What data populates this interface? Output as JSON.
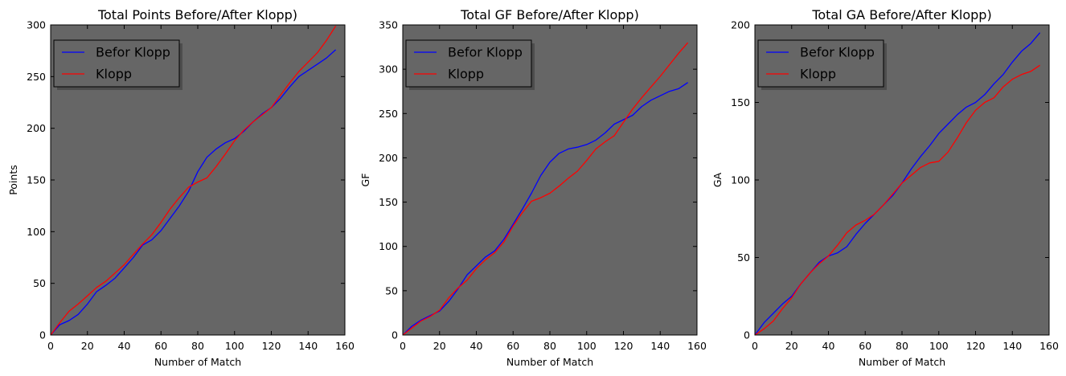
{
  "chart_data": [
    {
      "type": "line",
      "title": "Total Points Before/After Klopp)",
      "xlabel": "Number of Match",
      "ylabel": "Points",
      "xlim": [
        0,
        160
      ],
      "ylim": [
        0,
        300
      ],
      "xticks": [
        0,
        20,
        40,
        60,
        80,
        100,
        120,
        140,
        160
      ],
      "yticks": [
        0,
        50,
        100,
        150,
        200,
        250,
        300
      ],
      "grid": false,
      "background": "#666666",
      "legend": "top-left",
      "series": [
        {
          "name": "Befor Klopp",
          "color": "#0000ff",
          "x": [
            0,
            5,
            10,
            15,
            20,
            25,
            30,
            35,
            40,
            45,
            50,
            55,
            60,
            65,
            70,
            75,
            80,
            85,
            90,
            95,
            100,
            105,
            110,
            115,
            120,
            125,
            130,
            135,
            140,
            145,
            150,
            155
          ],
          "y": [
            0,
            10,
            14,
            20,
            30,
            42,
            48,
            55,
            65,
            75,
            87,
            92,
            101,
            113,
            125,
            139,
            158,
            172,
            180,
            186,
            190,
            197,
            206,
            214,
            220,
            229,
            240,
            250,
            256,
            262,
            268,
            276
          ]
        },
        {
          "name": "Klopp",
          "color": "#ff0000",
          "x": [
            0,
            5,
            10,
            15,
            20,
            25,
            30,
            35,
            40,
            45,
            50,
            55,
            60,
            65,
            70,
            75,
            80,
            85,
            90,
            95,
            100,
            105,
            110,
            115,
            120,
            125,
            130,
            135,
            140,
            145,
            150,
            155
          ],
          "y": [
            0,
            12,
            23,
            30,
            38,
            46,
            52,
            60,
            68,
            78,
            88,
            97,
            109,
            122,
            133,
            143,
            148,
            152,
            163,
            175,
            188,
            198,
            206,
            213,
            220,
            232,
            244,
            255,
            264,
            273,
            285,
            299
          ]
        }
      ]
    },
    {
      "type": "line",
      "title": "Total GF Before/After Klopp)",
      "xlabel": "Number of Match",
      "ylabel": "GF",
      "xlim": [
        0,
        160
      ],
      "ylim": [
        0,
        350
      ],
      "xticks": [
        0,
        20,
        40,
        60,
        80,
        100,
        120,
        140,
        160
      ],
      "yticks": [
        0,
        50,
        100,
        150,
        200,
        250,
        300,
        350
      ],
      "grid": false,
      "background": "#666666",
      "legend": "top-left",
      "series": [
        {
          "name": "Befor Klopp",
          "color": "#0000ff",
          "x": [
            0,
            5,
            10,
            15,
            20,
            25,
            30,
            35,
            40,
            45,
            50,
            55,
            60,
            65,
            70,
            75,
            80,
            85,
            90,
            95,
            100,
            105,
            110,
            115,
            120,
            125,
            130,
            135,
            140,
            145,
            150,
            155
          ],
          "y": [
            0,
            10,
            17,
            22,
            27,
            38,
            52,
            68,
            78,
            88,
            95,
            108,
            125,
            142,
            160,
            180,
            195,
            205,
            210,
            212,
            215,
            220,
            228,
            238,
            243,
            248,
            258,
            265,
            270,
            275,
            278,
            285
          ]
        },
        {
          "name": "Klopp",
          "color": "#ff0000",
          "x": [
            0,
            5,
            10,
            15,
            20,
            25,
            30,
            35,
            40,
            45,
            50,
            55,
            60,
            65,
            70,
            75,
            80,
            85,
            90,
            95,
            100,
            105,
            110,
            115,
            120,
            125,
            130,
            135,
            140,
            145,
            150,
            155
          ],
          "y": [
            0,
            8,
            16,
            21,
            28,
            42,
            53,
            62,
            75,
            85,
            93,
            105,
            123,
            138,
            151,
            155,
            160,
            168,
            177,
            185,
            197,
            210,
            218,
            225,
            240,
            255,
            268,
            280,
            292,
            305,
            318,
            330
          ]
        }
      ]
    },
    {
      "type": "line",
      "title": "Total GA Before/After Klopp)",
      "xlabel": "Number of Match",
      "ylabel": "GA",
      "xlim": [
        0,
        160
      ],
      "ylim": [
        0,
        200
      ],
      "xticks": [
        0,
        20,
        40,
        60,
        80,
        100,
        120,
        140,
        160
      ],
      "yticks": [
        0,
        50,
        100,
        150,
        200
      ],
      "grid": false,
      "background": "#666666",
      "legend": "top-left",
      "series": [
        {
          "name": "Befor Klopp",
          "color": "#0000ff",
          "x": [
            0,
            5,
            10,
            15,
            20,
            25,
            30,
            35,
            40,
            45,
            50,
            55,
            60,
            65,
            70,
            75,
            80,
            85,
            90,
            95,
            100,
            105,
            110,
            115,
            120,
            125,
            130,
            135,
            140,
            145,
            150,
            155
          ],
          "y": [
            0,
            8,
            14,
            20,
            25,
            33,
            40,
            47,
            51,
            53,
            57,
            65,
            72,
            78,
            84,
            90,
            98,
            107,
            115,
            122,
            130,
            136,
            142,
            147,
            150,
            155,
            162,
            168,
            176,
            183,
            188,
            195
          ]
        },
        {
          "name": "Klopp",
          "color": "#ff0000",
          "x": [
            0,
            5,
            10,
            15,
            20,
            25,
            30,
            35,
            40,
            45,
            50,
            55,
            60,
            65,
            70,
            75,
            80,
            85,
            90,
            95,
            100,
            105,
            110,
            115,
            120,
            125,
            130,
            135,
            140,
            145,
            150,
            155
          ],
          "y": [
            0,
            4,
            9,
            17,
            24,
            33,
            40,
            46,
            51,
            58,
            66,
            71,
            74,
            78,
            84,
            91,
            98,
            103,
            108,
            111,
            112,
            118,
            127,
            137,
            145,
            150,
            153,
            160,
            165,
            168,
            170,
            174
          ]
        }
      ]
    }
  ]
}
